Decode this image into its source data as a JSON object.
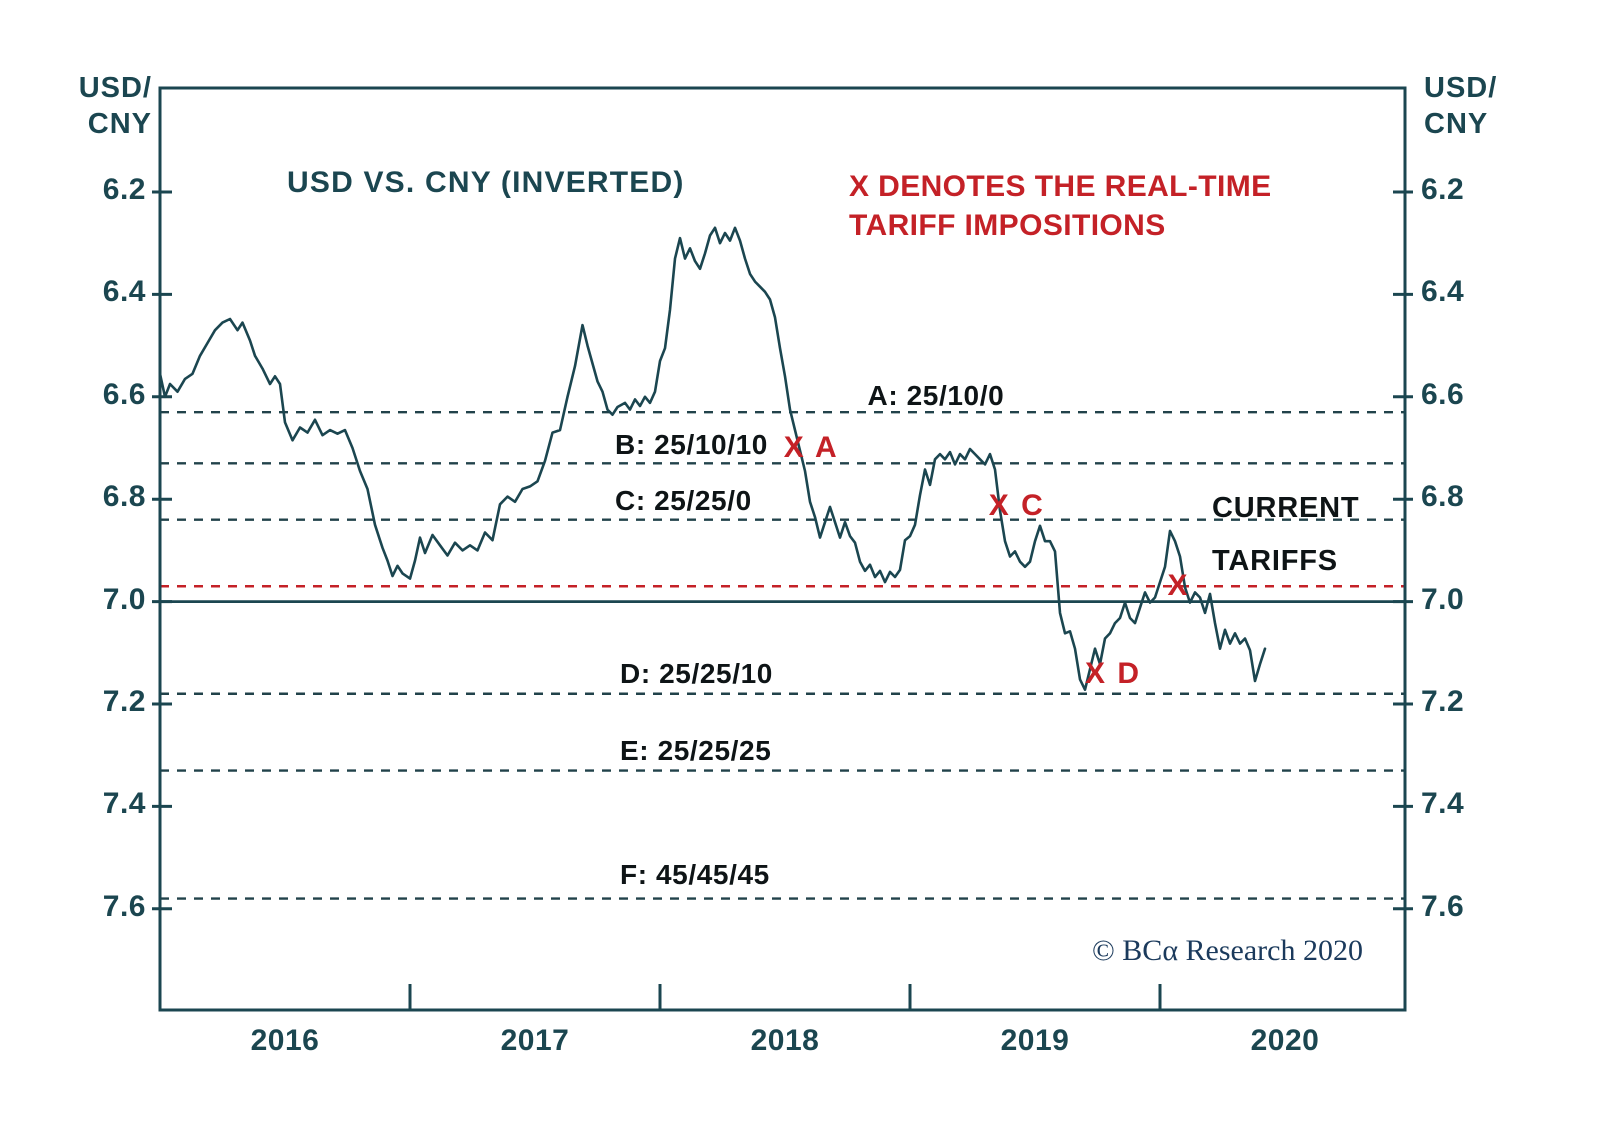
{
  "axis_unit": {
    "line1": "USD/",
    "line2": "CNY"
  },
  "annotation": {
    "line1": "X DENOTES THE REAL-TIME",
    "line2": "TARIFF IMPOSITIONS"
  },
  "copyright": "© BCα Research 2020",
  "chart_data": {
    "type": "line",
    "title": "USD VS. CNY (INVERTED)",
    "xlabel": "",
    "ylabel": "USD/CNY",
    "y_inverted": true,
    "ylim": [
      6.1,
      7.8
    ],
    "xlim": [
      2016.0,
      2020.98
    ],
    "y_ticks": [
      6.2,
      6.4,
      6.6,
      6.8,
      7.0,
      7.2,
      7.4,
      7.6
    ],
    "x_tick_years": [
      2017,
      2018,
      2019,
      2020
    ],
    "x_year_labels": [
      2016,
      2017,
      2018,
      2019,
      2020
    ],
    "grid": false,
    "legend_position": "none",
    "solid_reference_line": 7.0,
    "current_tariff_line": {
      "value": 6.97,
      "label": [
        "CURRENT",
        "TARIFFS"
      ]
    },
    "tariff_lines": [
      {
        "id": "A",
        "label": "A: 25/10/0",
        "value": 6.63,
        "label_t": 2018.83,
        "label_v": 6.62
      },
      {
        "id": "B",
        "label": "B: 25/10/10",
        "value": 6.73,
        "label_t": 2017.82,
        "label_v": 6.715
      },
      {
        "id": "C",
        "label": "C: 25/25/0",
        "value": 6.84,
        "label_t": 2017.82,
        "label_v": 6.825
      },
      {
        "id": "D",
        "label": "D: 25/25/10",
        "value": 7.18,
        "label_t": 2017.84,
        "label_v": 7.163
      },
      {
        "id": "E",
        "label": "E: 25/25/25",
        "value": 7.33,
        "label_t": 2017.84,
        "label_v": 7.313
      },
      {
        "id": "F",
        "label": "F: 45/45/45",
        "value": 7.58,
        "label_t": 2017.84,
        "label_v": 7.555
      }
    ],
    "events": [
      {
        "text": "X A",
        "t": 2018.555,
        "value": 6.705
      },
      {
        "text": "X C",
        "t": 2019.375,
        "value": 6.82
      },
      {
        "text": "X",
        "t": 2020.09,
        "value": 6.975
      },
      {
        "text": "X D",
        "t": 2019.76,
        "value": 7.148
      }
    ],
    "colors": {
      "line": "#1b4650",
      "axis": "#1b4650",
      "dash": "#21424a",
      "red": "#c42127",
      "label_text": "#0e1416"
    },
    "series": [
      {
        "name": "USD/CNY (inverted)",
        "points": [
          [
            2016.0,
            6.555
          ],
          [
            2016.02,
            6.6
          ],
          [
            2016.04,
            6.575
          ],
          [
            2016.07,
            6.59
          ],
          [
            2016.1,
            6.565
          ],
          [
            2016.13,
            6.555
          ],
          [
            2016.16,
            6.52
          ],
          [
            2016.19,
            6.495
          ],
          [
            2016.22,
            6.47
          ],
          [
            2016.25,
            6.455
          ],
          [
            2016.28,
            6.448
          ],
          [
            2016.31,
            6.47
          ],
          [
            2016.33,
            6.455
          ],
          [
            2016.36,
            6.49
          ],
          [
            2016.38,
            6.52
          ],
          [
            2016.41,
            6.545
          ],
          [
            2016.44,
            6.575
          ],
          [
            2016.46,
            6.56
          ],
          [
            2016.48,
            6.575
          ],
          [
            2016.5,
            6.65
          ],
          [
            2016.53,
            6.685
          ],
          [
            2016.56,
            6.66
          ],
          [
            2016.59,
            6.67
          ],
          [
            2016.62,
            6.645
          ],
          [
            2016.65,
            6.675
          ],
          [
            2016.68,
            6.665
          ],
          [
            2016.71,
            6.672
          ],
          [
            2016.74,
            6.665
          ],
          [
            2016.77,
            6.7
          ],
          [
            2016.8,
            6.745
          ],
          [
            2016.83,
            6.78
          ],
          [
            2016.86,
            6.85
          ],
          [
            2016.89,
            6.895
          ],
          [
            2016.91,
            6.92
          ],
          [
            2016.93,
            6.95
          ],
          [
            2016.95,
            6.93
          ],
          [
            2016.97,
            6.945
          ],
          [
            2017.0,
            6.955
          ],
          [
            2017.02,
            6.92
          ],
          [
            2017.04,
            6.875
          ],
          [
            2017.06,
            6.905
          ],
          [
            2017.09,
            6.87
          ],
          [
            2017.12,
            6.89
          ],
          [
            2017.15,
            6.91
          ],
          [
            2017.18,
            6.885
          ],
          [
            2017.21,
            6.9
          ],
          [
            2017.24,
            6.89
          ],
          [
            2017.27,
            6.9
          ],
          [
            2017.3,
            6.865
          ],
          [
            2017.33,
            6.88
          ],
          [
            2017.36,
            6.81
          ],
          [
            2017.39,
            6.795
          ],
          [
            2017.42,
            6.805
          ],
          [
            2017.45,
            6.78
          ],
          [
            2017.48,
            6.775
          ],
          [
            2017.51,
            6.765
          ],
          [
            2017.54,
            6.725
          ],
          [
            2017.57,
            6.67
          ],
          [
            2017.6,
            6.665
          ],
          [
            2017.63,
            6.6
          ],
          [
            2017.66,
            6.54
          ],
          [
            2017.69,
            6.46
          ],
          [
            2017.71,
            6.5
          ],
          [
            2017.73,
            6.535
          ],
          [
            2017.75,
            6.57
          ],
          [
            2017.77,
            6.59
          ],
          [
            2017.79,
            6.625
          ],
          [
            2017.81,
            6.635
          ],
          [
            2017.83,
            6.62
          ],
          [
            2017.86,
            6.612
          ],
          [
            2017.88,
            6.625
          ],
          [
            2017.9,
            6.605
          ],
          [
            2017.92,
            6.618
          ],
          [
            2017.94,
            6.6
          ],
          [
            2017.96,
            6.612
          ],
          [
            2017.98,
            6.59
          ],
          [
            2018.0,
            6.53
          ],
          [
            2018.02,
            6.505
          ],
          [
            2018.04,
            6.43
          ],
          [
            2018.06,
            6.33
          ],
          [
            2018.08,
            6.29
          ],
          [
            2018.1,
            6.33
          ],
          [
            2018.12,
            6.31
          ],
          [
            2018.14,
            6.335
          ],
          [
            2018.16,
            6.35
          ],
          [
            2018.18,
            6.32
          ],
          [
            2018.2,
            6.285
          ],
          [
            2018.22,
            6.27
          ],
          [
            2018.24,
            6.3
          ],
          [
            2018.26,
            6.28
          ],
          [
            2018.28,
            6.295
          ],
          [
            2018.3,
            6.27
          ],
          [
            2018.32,
            6.295
          ],
          [
            2018.34,
            6.33
          ],
          [
            2018.36,
            6.36
          ],
          [
            2018.38,
            6.375
          ],
          [
            2018.4,
            6.385
          ],
          [
            2018.42,
            6.395
          ],
          [
            2018.44,
            6.41
          ],
          [
            2018.46,
            6.445
          ],
          [
            2018.48,
            6.505
          ],
          [
            2018.5,
            6.56
          ],
          [
            2018.52,
            6.625
          ],
          [
            2018.54,
            6.665
          ],
          [
            2018.56,
            6.705
          ],
          [
            2018.58,
            6.745
          ],
          [
            2018.6,
            6.805
          ],
          [
            2018.62,
            6.835
          ],
          [
            2018.64,
            6.875
          ],
          [
            2018.66,
            6.845
          ],
          [
            2018.68,
            6.815
          ],
          [
            2018.7,
            6.845
          ],
          [
            2018.72,
            6.875
          ],
          [
            2018.74,
            6.845
          ],
          [
            2018.76,
            6.872
          ],
          [
            2018.78,
            6.885
          ],
          [
            2018.8,
            6.922
          ],
          [
            2018.82,
            6.94
          ],
          [
            2018.84,
            6.928
          ],
          [
            2018.86,
            6.952
          ],
          [
            2018.88,
            6.94
          ],
          [
            2018.9,
            6.962
          ],
          [
            2018.92,
            6.942
          ],
          [
            2018.94,
            6.952
          ],
          [
            2018.96,
            6.938
          ],
          [
            2018.98,
            6.88
          ],
          [
            2019.0,
            6.872
          ],
          [
            2019.02,
            6.85
          ],
          [
            2019.04,
            6.792
          ],
          [
            2019.06,
            6.742
          ],
          [
            2019.08,
            6.772
          ],
          [
            2019.1,
            6.722
          ],
          [
            2019.12,
            6.712
          ],
          [
            2019.14,
            6.722
          ],
          [
            2019.16,
            6.708
          ],
          [
            2019.18,
            6.732
          ],
          [
            2019.2,
            6.712
          ],
          [
            2019.22,
            6.722
          ],
          [
            2019.24,
            6.702
          ],
          [
            2019.26,
            6.712
          ],
          [
            2019.28,
            6.722
          ],
          [
            2019.3,
            6.732
          ],
          [
            2019.32,
            6.712
          ],
          [
            2019.34,
            6.742
          ],
          [
            2019.36,
            6.822
          ],
          [
            2019.38,
            6.882
          ],
          [
            2019.4,
            6.912
          ],
          [
            2019.42,
            6.902
          ],
          [
            2019.44,
            6.922
          ],
          [
            2019.46,
            6.932
          ],
          [
            2019.48,
            6.922
          ],
          [
            2019.5,
            6.882
          ],
          [
            2019.52,
            6.852
          ],
          [
            2019.54,
            6.882
          ],
          [
            2019.56,
            6.882
          ],
          [
            2019.58,
            6.902
          ],
          [
            2019.6,
            7.022
          ],
          [
            2019.62,
            7.062
          ],
          [
            2019.64,
            7.058
          ],
          [
            2019.66,
            7.092
          ],
          [
            2019.68,
            7.152
          ],
          [
            2019.7,
            7.172
          ],
          [
            2019.72,
            7.132
          ],
          [
            2019.74,
            7.092
          ],
          [
            2019.76,
            7.122
          ],
          [
            2019.78,
            7.072
          ],
          [
            2019.8,
            7.062
          ],
          [
            2019.82,
            7.042
          ],
          [
            2019.84,
            7.032
          ],
          [
            2019.86,
            7.002
          ],
          [
            2019.88,
            7.032
          ],
          [
            2019.9,
            7.042
          ],
          [
            2019.92,
            7.012
          ],
          [
            2019.94,
            6.982
          ],
          [
            2019.96,
            7.002
          ],
          [
            2019.98,
            6.992
          ],
          [
            2020.0,
            6.962
          ],
          [
            2020.02,
            6.932
          ],
          [
            2020.04,
            6.862
          ],
          [
            2020.06,
            6.882
          ],
          [
            2020.08,
            6.912
          ],
          [
            2020.1,
            6.972
          ],
          [
            2020.12,
            7.002
          ],
          [
            2020.14,
            6.982
          ],
          [
            2020.16,
            6.992
          ],
          [
            2020.18,
            7.022
          ],
          [
            2020.2,
            6.985
          ],
          [
            2020.22,
            7.042
          ],
          [
            2020.24,
            7.092
          ],
          [
            2020.26,
            7.055
          ],
          [
            2020.28,
            7.082
          ],
          [
            2020.3,
            7.062
          ],
          [
            2020.32,
            7.082
          ],
          [
            2020.34,
            7.072
          ],
          [
            2020.36,
            7.095
          ],
          [
            2020.38,
            7.155
          ],
          [
            2020.4,
            7.122
          ],
          [
            2020.42,
            7.092
          ]
        ]
      }
    ]
  }
}
